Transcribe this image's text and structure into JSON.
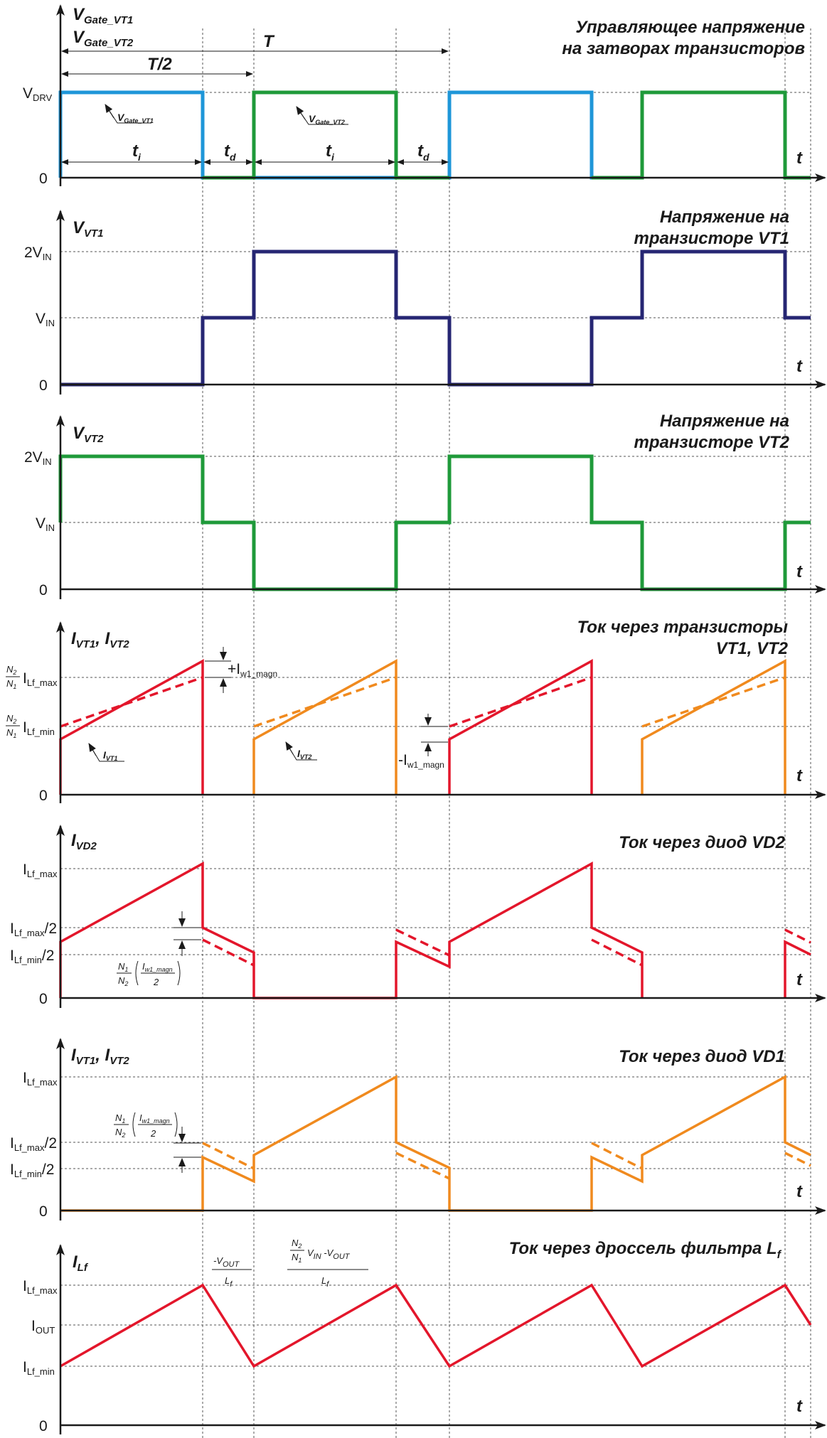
{
  "colors": {
    "blue": "#1e96d8",
    "green": "#1f9a3a",
    "navy": "#262673",
    "red": "#e3162b",
    "orange": "#f08a1e",
    "axis": "#1a1a1a"
  },
  "axis_t": "t",
  "zero": "0",
  "panel1": {
    "title1": "Управляющее напряжение",
    "title2": "на затворах транзисторов",
    "ylabel1": "V",
    "ylabel1_sub": "Gate_VT1",
    "ylabel2": "V",
    "ylabel2_sub": "Gate_VT2",
    "level_base": "V",
    "level_sub": "DRV",
    "period_T": "T",
    "half_period": "T/2",
    "ti": "t",
    "ti_sub": "i",
    "td": "t",
    "td_sub": "d",
    "callout1": "V",
    "callout1_sub": "Gate_VT1",
    "callout2": "V",
    "callout2_sub": "Gate_VT2"
  },
  "panel2": {
    "title1": "Напряжение на",
    "title2": "транзисторе VT1",
    "ylabel": "V",
    "ylabel_sub": "VT1",
    "level_2vin": "2V",
    "level_vin": "V",
    "level_sub": "IN"
  },
  "panel3": {
    "title1": "Напряжение на",
    "title2": "транзисторе VT2",
    "ylabel": "V",
    "ylabel_sub": "VT2",
    "level_2vin": "2V",
    "level_vin": "V",
    "level_sub": "IN"
  },
  "panel4": {
    "title1": "Ток через транзисторы",
    "title2": "VT1, VT2",
    "ylabel1": "I",
    "ylabel1_sub": "VT1",
    "ylabel_sep": ", I",
    "ylabel2_sub": "VT2",
    "n2": "N",
    "n2_sub": "2",
    "n1": "N",
    "n1_sub": "1",
    "lvl_max": "I",
    "lvl_max_sub": "Lf_max",
    "lvl_min": "I",
    "lvl_min_sub": "Lf_min",
    "plus_magn": "+I",
    "minus_magn": "-I",
    "magn_sub": "w1_magn",
    "callout1": "I",
    "callout1_sub": "VT1",
    "callout2": "I",
    "callout2_sub": "VT2"
  },
  "panel5": {
    "title": "Ток через диод VD2",
    "ylabel": "I",
    "ylabel_sub": "VD2",
    "lvl_max": "I",
    "lvl_max_sub": "Lf_max",
    "lvl_max2": "I",
    "lvl_max2_sub": "Lf_max",
    "lvl_min2": "I",
    "lvl_min2_sub": "Lf_min",
    "half": "/2",
    "frac_n1": "N",
    "frac_n1_sub": "1",
    "frac_n2": "N",
    "frac_n2_sub": "2",
    "frac_i": "I",
    "frac_i_sub": "w1_magn",
    "frac_2": "2"
  },
  "panel6": {
    "title": "Ток через диод VD1",
    "ylabel1": "I",
    "ylabel1_sub": "VT1",
    "ylabel_sep": ", I",
    "ylabel2_sub": "VT2",
    "lvl_max": "I",
    "lvl_max_sub": "Lf_max",
    "lvl_max2": "I",
    "lvl_max2_sub": "Lf_max",
    "lvl_min2": "I",
    "lvl_min2_sub": "Lf_min",
    "half": "/2",
    "frac_n1": "N",
    "frac_n1_sub": "1",
    "frac_n2": "N",
    "frac_n2_sub": "2",
    "frac_i": "I",
    "frac_i_sub": "w1_magn",
    "frac_2": "2"
  },
  "panel7": {
    "title_main": "Ток через дроссель фильтра L",
    "title_sub": "f",
    "ylabel": "I",
    "ylabel_sub": "Lf",
    "lvl_max": "I",
    "lvl_max_sub": "Lf_max",
    "lvl_out": "I",
    "lvl_out_sub": "OUT",
    "lvl_min": "I",
    "lvl_min_sub": "Lf_min",
    "slope_down_num": "-V",
    "slope_down_num_sub": "OUT",
    "slope_den": "L",
    "slope_den_sub": "f",
    "slope_up_n2": "N",
    "slope_up_n2_sub": "2",
    "slope_up_n1": "N",
    "slope_up_n1_sub": "1",
    "slope_up_v": "V",
    "slope_up_v_sub": "IN",
    "slope_up_minus": " -V",
    "slope_up_minus_sub": "OUT"
  }
}
